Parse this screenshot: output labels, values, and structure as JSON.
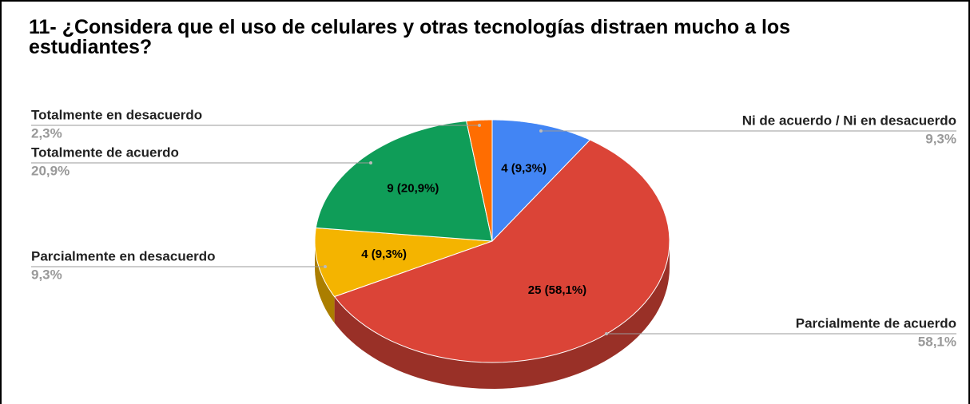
{
  "chart_data": {
    "type": "pie3d",
    "title": "11- ¿Considera que el uso de celulares y otras tecnologías distraen mucho a los estudiantes?",
    "categories": [
      "Ni de acuerdo / Ni en desacuerdo",
      "Parcialmente de acuerdo",
      "Parcialmente en desacuerdo",
      "Totalmente de acuerdo",
      "Totalmente en desacuerdo"
    ],
    "values": [
      4,
      25,
      4,
      9,
      1
    ],
    "value_labels": [
      "4 (9,3%)",
      "25 (58,1%)",
      "4 (9,3%)",
      "9 (20,9%)",
      null
    ],
    "percentages": [
      9.3,
      58.1,
      9.3,
      20.9,
      2.3
    ],
    "percentage_labels": [
      "9,3%",
      "58,1%",
      "9,3%",
      "20,9%",
      "2,3%"
    ],
    "colors": [
      "#4285f4",
      "#db4437",
      "#f4b400",
      "#0f9d58",
      "#ff6d01"
    ]
  }
}
